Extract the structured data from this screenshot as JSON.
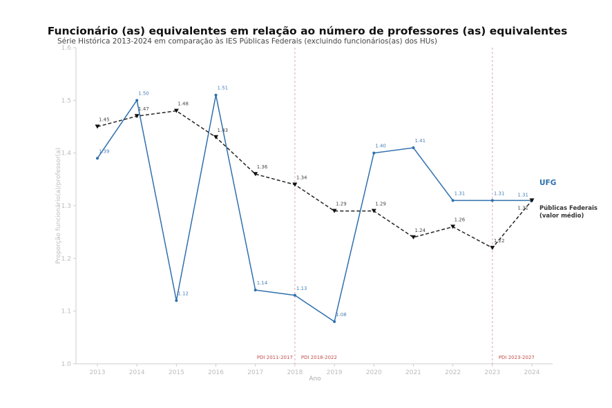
{
  "chart_data": {
    "type": "line",
    "title": "Funcionário (as) equivalentes em relação ao número de professores (as) equivalentes",
    "subtitle": "Série Histórica 2013-2024 em comparação às IES Públicas Federais (excluindo funcionários(as) dos HUs)",
    "xlabel": "Ano",
    "ylabel": "Proporção funcionário(a)/professor(a)",
    "ylim": [
      1.0,
      1.6
    ],
    "yticks": [
      "1.0",
      "1.1",
      "1.2",
      "1.3",
      "1.4",
      "1.5",
      "1.6"
    ],
    "x": [
      "2013",
      "2014",
      "2015",
      "2016",
      "2017",
      "2018",
      "2019",
      "2020",
      "2021",
      "2022",
      "2023",
      "2024"
    ],
    "series": [
      {
        "name": "UFG",
        "color": "#2e6fad",
        "values": [
          1.39,
          1.5,
          1.12,
          1.51,
          1.14,
          1.13,
          1.08,
          1.4,
          1.41,
          1.31,
          1.31,
          1.31
        ]
      },
      {
        "name": "Públicas Federais",
        "name2": "(valor médio)",
        "color": "#222222",
        "values": [
          1.45,
          1.47,
          1.48,
          1.43,
          1.36,
          1.34,
          1.29,
          1.29,
          1.24,
          1.26,
          1.22,
          1.31
        ]
      }
    ],
    "annotations": [
      {
        "year": 2018,
        "left": "PDI 2011-2017",
        "right": "PDI 2018-2022"
      },
      {
        "year": 2023,
        "right": "PDI 2023-2027"
      }
    ]
  }
}
